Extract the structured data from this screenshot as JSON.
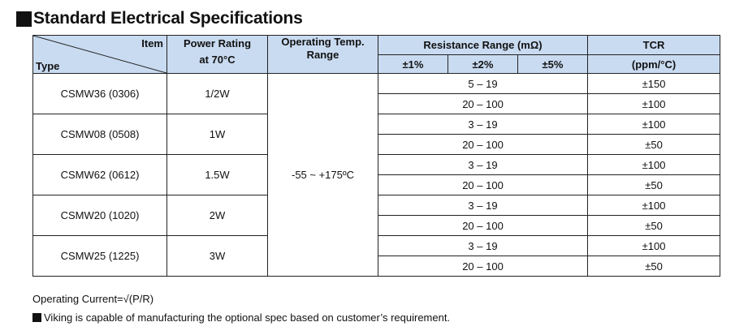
{
  "title": "Standard Electrical Specifications",
  "header": {
    "item": "Item",
    "type": "Type",
    "power_rating_line1": "Power Rating",
    "power_rating_line2": "at 70°C",
    "op_temp_line1": "Operating Temp.",
    "op_temp_line2": "Range",
    "resistance_range": "Resistance Range (mΩ)",
    "tol1": "±1%",
    "tol2": "±2%",
    "tol5": "±5%",
    "tcr_line1": "TCR",
    "tcr_line2": "(ppm/°C)"
  },
  "operating_temp": "-55 ~ +175ºC",
  "types": [
    {
      "type": "CSMW36 (0306)",
      "power": "1/2W",
      "ranges": [
        "5 – 19",
        "20 – 100"
      ],
      "tcr": [
        "±150",
        "±100"
      ]
    },
    {
      "type": "CSMW08 (0508)",
      "power": "1W",
      "ranges": [
        "3 – 19",
        "20 – 100"
      ],
      "tcr": [
        "±100",
        "±50"
      ]
    },
    {
      "type": "CSMW62 (0612)",
      "power": "1.5W",
      "ranges": [
        "3 – 19",
        "20 – 100"
      ],
      "tcr": [
        "±100",
        "±50"
      ]
    },
    {
      "type": "CSMW20 (1020)",
      "power": "2W",
      "ranges": [
        "3 – 19",
        "20 – 100"
      ],
      "tcr": [
        "±100",
        "±50"
      ]
    },
    {
      "type": "CSMW25 (1225)",
      "power": "3W",
      "ranges": [
        "3 – 19",
        "20 – 100"
      ],
      "tcr": [
        "±100",
        "±50"
      ]
    }
  ],
  "footnotes": {
    "operating_current": "Operating Current=√(P/R)",
    "viking_note": "Viking is capable of manufacturing the optional spec based on customer’s requirement."
  }
}
